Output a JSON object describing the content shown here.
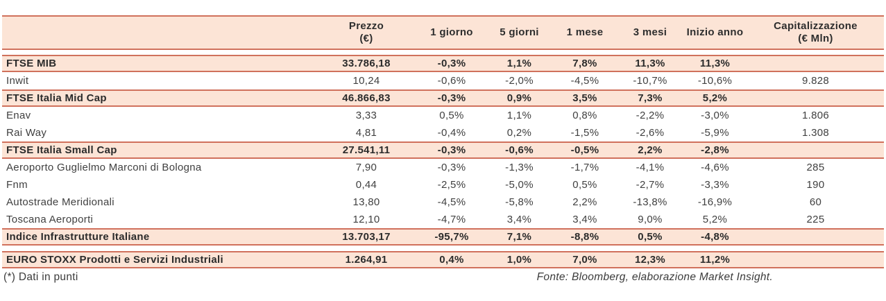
{
  "colors": {
    "peach_bg": "#fce4d6",
    "rule": "#d0715c",
    "text": "#3f3f3f"
  },
  "header": {
    "name_col": "",
    "cols": [
      {
        "label": "Prezzo",
        "sub": "(€)"
      },
      {
        "label": "1 giorno",
        "sub": ""
      },
      {
        "label": "5 giorni",
        "sub": ""
      },
      {
        "label": "1 mese",
        "sub": ""
      },
      {
        "label": "3 mesi",
        "sub": ""
      },
      {
        "label": "Inizio anno",
        "sub": ""
      },
      {
        "label": "Capitalizzazione",
        "sub": "(€ Mln)"
      }
    ]
  },
  "rows": [
    {
      "name": "FTSE MIB",
      "prezzo": "33.786,18",
      "g1": "-0,3%",
      "g5": "1,1%",
      "m1": "7,8%",
      "m3": "11,3%",
      "ytd": "11,3%",
      "cap": ""
    },
    {
      "name": "Inwit",
      "prezzo": "10,24",
      "g1": "-0,6%",
      "g5": "-2,0%",
      "m1": "-4,5%",
      "m3": "-10,7%",
      "ytd": "-10,6%",
      "cap": "9.828"
    },
    {
      "name": "FTSE Italia Mid Cap",
      "prezzo": "46.866,83",
      "g1": "-0,3%",
      "g5": "0,9%",
      "m1": "3,5%",
      "m3": "7,3%",
      "ytd": "5,2%",
      "cap": ""
    },
    {
      "name": "Enav",
      "prezzo": "3,33",
      "g1": "0,5%",
      "g5": "1,1%",
      "m1": "0,8%",
      "m3": "-2,2%",
      "ytd": "-3,0%",
      "cap": "1.806"
    },
    {
      "name": "Rai Way",
      "prezzo": "4,81",
      "g1": "-0,4%",
      "g5": "0,2%",
      "m1": "-1,5%",
      "m3": "-2,6%",
      "ytd": "-5,9%",
      "cap": "1.308"
    },
    {
      "name": "FTSE Italia Small Cap",
      "prezzo": "27.541,11",
      "g1": "-0,3%",
      "g5": "-0,6%",
      "m1": "-0,5%",
      "m3": "2,2%",
      "ytd": "-2,8%",
      "cap": ""
    },
    {
      "name": "Aeroporto Guglielmo Marconi di Bologna",
      "prezzo": "7,90",
      "g1": "-0,3%",
      "g5": "-1,3%",
      "m1": "-1,7%",
      "m3": "-4,1%",
      "ytd": "-4,6%",
      "cap": "285"
    },
    {
      "name": "Fnm",
      "prezzo": "0,44",
      "g1": "-2,5%",
      "g5": "-5,0%",
      "m1": "0,5%",
      "m3": "-2,7%",
      "ytd": "-3,3%",
      "cap": "190"
    },
    {
      "name": "Autostrade Meridionali",
      "prezzo": "13,80",
      "g1": "-4,5%",
      "g5": "-5,8%",
      "m1": "2,2%",
      "m3": "-13,8%",
      "ytd": "-16,9%",
      "cap": "60"
    },
    {
      "name": "Toscana Aeroporti",
      "prezzo": "12,10",
      "g1": "-4,7%",
      "g5": "3,4%",
      "m1": "3,4%",
      "m3": "9,0%",
      "ytd": "5,2%",
      "cap": "225"
    },
    {
      "name": "Indice Infrastrutture Italiane",
      "prezzo": "13.703,17",
      "g1": "-95,7%",
      "g5": "7,1%",
      "m1": "-8,8%",
      "m3": "0,5%",
      "ytd": "-4,8%",
      "cap": ""
    },
    {
      "name": "EURO STOXX Prodotti e Servizi Industriali",
      "prezzo": "1.264,91",
      "g1": "0,4%",
      "g5": "1,0%",
      "m1": "7,0%",
      "m3": "12,3%",
      "ytd": "11,2%",
      "cap": ""
    }
  ],
  "footer": {
    "note": "(*) Dati in punti",
    "source": "Fonte: Bloomberg, elaborazione Market Insight."
  },
  "chart_data": {
    "type": "table",
    "title": "",
    "columns": [
      "",
      "Prezzo (€)",
      "1 giorno",
      "5 giorni",
      "1 mese",
      "3 mesi",
      "Inizio anno",
      "Capitalizzazione (€ Mln)"
    ],
    "rows": [
      [
        "FTSE MIB",
        "33.786,18",
        "-0,3%",
        "1,1%",
        "7,8%",
        "11,3%",
        "11,3%",
        ""
      ],
      [
        "Inwit",
        "10,24",
        "-0,6%",
        "-2,0%",
        "-4,5%",
        "-10,7%",
        "-10,6%",
        "9.828"
      ],
      [
        "FTSE Italia Mid Cap",
        "46.866,83",
        "-0,3%",
        "0,9%",
        "3,5%",
        "7,3%",
        "5,2%",
        ""
      ],
      [
        "Enav",
        "3,33",
        "0,5%",
        "1,1%",
        "0,8%",
        "-2,2%",
        "-3,0%",
        "1.806"
      ],
      [
        "Rai Way",
        "4,81",
        "-0,4%",
        "0,2%",
        "-1,5%",
        "-2,6%",
        "-5,9%",
        "1.308"
      ],
      [
        "FTSE Italia Small Cap",
        "27.541,11",
        "-0,3%",
        "-0,6%",
        "-0,5%",
        "2,2%",
        "-2,8%",
        ""
      ],
      [
        "Aeroporto Guglielmo Marconi di Bologna",
        "7,90",
        "-0,3%",
        "-1,3%",
        "-1,7%",
        "-4,1%",
        "-4,6%",
        "285"
      ],
      [
        "Fnm",
        "0,44",
        "-2,5%",
        "-5,0%",
        "0,5%",
        "-2,7%",
        "-3,3%",
        "190"
      ],
      [
        "Autostrade Meridionali",
        "13,80",
        "-4,5%",
        "-5,8%",
        "2,2%",
        "-13,8%",
        "-16,9%",
        "60"
      ],
      [
        "Toscana Aeroporti",
        "12,10",
        "-4,7%",
        "3,4%",
        "3,4%",
        "9,0%",
        "5,2%",
        "225"
      ],
      [
        "Indice Infrastrutture Italiane",
        "13.703,17",
        "-95,7%",
        "7,1%",
        "-8,8%",
        "0,5%",
        "-4,8%",
        ""
      ],
      [
        "EURO STOXX Prodotti e Servizi Industriali",
        "1.264,91",
        "0,4%",
        "1,0%",
        "7,0%",
        "12,3%",
        "11,2%",
        ""
      ]
    ],
    "notes": [
      "(*) Dati in punti",
      "Fonte: Bloomberg, elaborazione Market Insight."
    ]
  }
}
